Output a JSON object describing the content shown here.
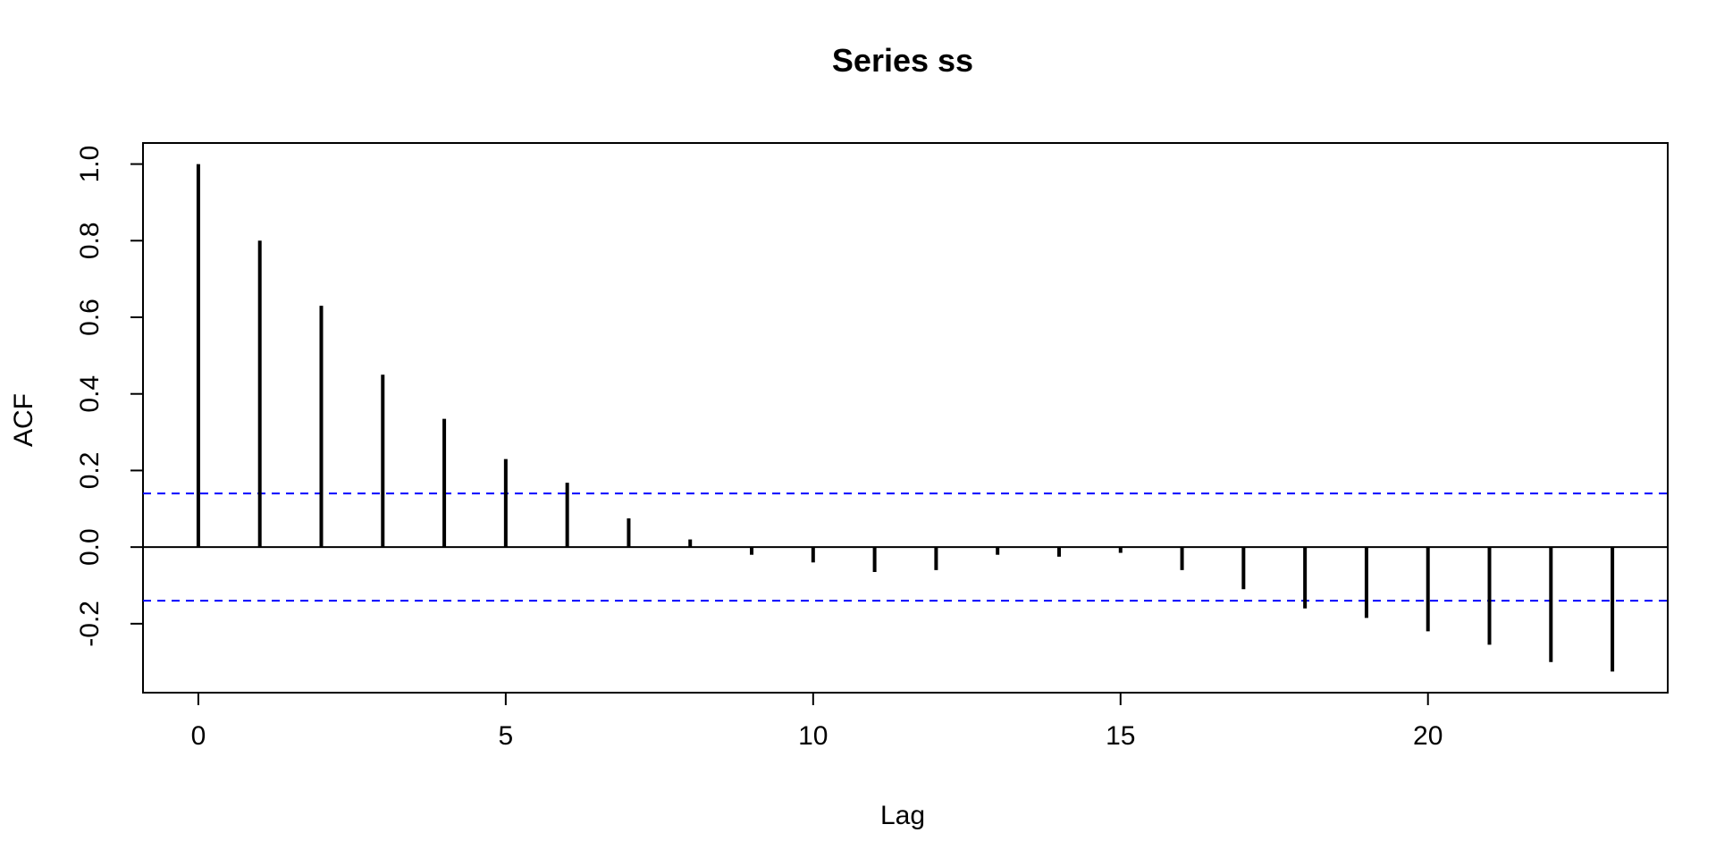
{
  "chart_data": {
    "type": "bar",
    "title": "Series  ss",
    "xlabel": "Lag",
    "ylabel": "ACF",
    "xlim": [
      -0.9,
      23.9
    ],
    "ylim": [
      -0.38,
      1.055
    ],
    "x_ticks": [
      0,
      5,
      10,
      15,
      20
    ],
    "x_tick_labels": [
      "0",
      "5",
      "10",
      "15",
      "20"
    ],
    "y_ticks": [
      -0.2,
      0.0,
      0.2,
      0.4,
      0.6,
      0.8,
      1.0
    ],
    "y_tick_labels": [
      "-0.2",
      "0.0",
      "0.2",
      "0.4",
      "0.6",
      "0.8",
      "1.0"
    ],
    "grid": false,
    "series": [
      {
        "x": [
          0,
          1,
          2,
          3,
          4,
          5,
          6,
          7,
          8,
          9,
          10,
          11,
          12,
          13,
          14,
          15,
          16,
          17,
          18,
          19,
          20,
          21,
          22,
          23
        ],
        "values": [
          1.0,
          0.8,
          0.63,
          0.45,
          0.335,
          0.23,
          0.168,
          0.075,
          0.02,
          -0.02,
          -0.04,
          -0.065,
          -0.06,
          -0.02,
          -0.025,
          -0.015,
          -0.06,
          -0.11,
          -0.16,
          -0.185,
          -0.22,
          -0.255,
          -0.3,
          -0.325
        ],
        "color": "#000000"
      }
    ],
    "confidence_bounds": [
      0.14,
      -0.14
    ],
    "confidence_color": "#0000ff",
    "zero_line_color": "#000000"
  }
}
